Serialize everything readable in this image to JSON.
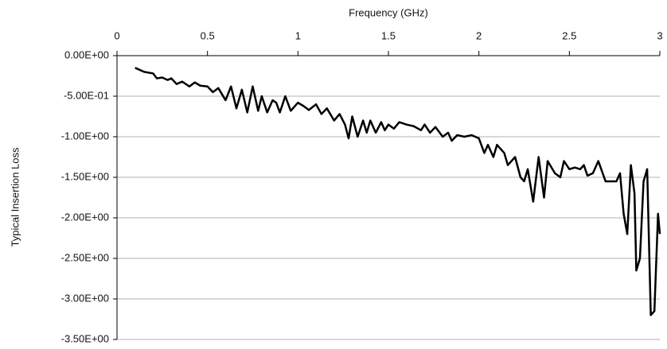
{
  "chart_data": {
    "type": "line",
    "x_label": "Frequency (GHz)",
    "y_label": "Typical Insertion Loss",
    "xlim": [
      0,
      3
    ],
    "xticks": [
      0,
      0.5,
      1,
      1.5,
      2,
      2.5,
      3
    ],
    "ylim": [
      -3.5,
      0
    ],
    "yticks": [
      {
        "value": 0,
        "label": "0.00E+00"
      },
      {
        "value": -0.5,
        "label": "-5.00E-01"
      },
      {
        "value": -1,
        "label": "-1.00E+00"
      },
      {
        "value": -1.5,
        "label": "-1.50E+00"
      },
      {
        "value": -2,
        "label": "-2.00E+00"
      },
      {
        "value": -2.5,
        "label": "-2.50E+00"
      },
      {
        "value": -3,
        "label": "-3.00E+00"
      },
      {
        "value": -3.5,
        "label": "-3.50E+00"
      }
    ],
    "grid": true,
    "x": [
      0.1,
      0.15,
      0.2,
      0.22,
      0.25,
      0.28,
      0.3,
      0.33,
      0.36,
      0.4,
      0.43,
      0.46,
      0.5,
      0.53,
      0.56,
      0.6,
      0.63,
      0.66,
      0.69,
      0.72,
      0.75,
      0.78,
      0.8,
      0.83,
      0.86,
      0.88,
      0.9,
      0.93,
      0.96,
      1.0,
      1.03,
      1.06,
      1.1,
      1.13,
      1.16,
      1.2,
      1.23,
      1.26,
      1.28,
      1.3,
      1.33,
      1.36,
      1.38,
      1.4,
      1.43,
      1.46,
      1.48,
      1.5,
      1.53,
      1.56,
      1.6,
      1.64,
      1.68,
      1.7,
      1.73,
      1.76,
      1.8,
      1.83,
      1.85,
      1.88,
      1.92,
      1.96,
      2.0,
      2.03,
      2.05,
      2.08,
      2.1,
      2.14,
      2.16,
      2.2,
      2.23,
      2.25,
      2.27,
      2.3,
      2.33,
      2.36,
      2.38,
      2.42,
      2.45,
      2.47,
      2.5,
      2.53,
      2.56,
      2.58,
      2.6,
      2.63,
      2.66,
      2.7,
      2.73,
      2.76,
      2.78,
      2.8,
      2.82,
      2.84,
      2.86,
      2.87,
      2.89,
      2.91,
      2.93,
      2.95,
      2.97,
      2.99,
      3.0
    ],
    "series": [
      {
        "name": "Typical Insertion Loss",
        "color": "#000000",
        "values": [
          -0.15,
          -0.2,
          -0.22,
          -0.28,
          -0.27,
          -0.3,
          -0.28,
          -0.35,
          -0.32,
          -0.38,
          -0.33,
          -0.37,
          -0.38,
          -0.45,
          -0.4,
          -0.55,
          -0.38,
          -0.65,
          -0.42,
          -0.7,
          -0.38,
          -0.68,
          -0.5,
          -0.7,
          -0.55,
          -0.58,
          -0.7,
          -0.5,
          -0.68,
          -0.58,
          -0.62,
          -0.67,
          -0.6,
          -0.72,
          -0.65,
          -0.8,
          -0.72,
          -0.85,
          -1.02,
          -0.75,
          -1.0,
          -0.8,
          -0.95,
          -0.8,
          -0.95,
          -0.82,
          -0.92,
          -0.85,
          -0.9,
          -0.82,
          -0.85,
          -0.87,
          -0.92,
          -0.85,
          -0.95,
          -0.88,
          -1.0,
          -0.95,
          -1.05,
          -0.98,
          -1.0,
          -0.98,
          -1.02,
          -1.2,
          -1.1,
          -1.25,
          -1.1,
          -1.2,
          -1.35,
          -1.25,
          -1.5,
          -1.55,
          -1.4,
          -1.8,
          -1.25,
          -1.75,
          -1.3,
          -1.45,
          -1.5,
          -1.3,
          -1.4,
          -1.38,
          -1.4,
          -1.35,
          -1.48,
          -1.45,
          -1.3,
          -1.55,
          -1.55,
          -1.55,
          -1.45,
          -1.95,
          -2.2,
          -1.35,
          -1.7,
          -2.65,
          -2.5,
          -1.55,
          -1.4,
          -3.2,
          -3.15,
          -1.95,
          -2.2
        ]
      }
    ]
  }
}
